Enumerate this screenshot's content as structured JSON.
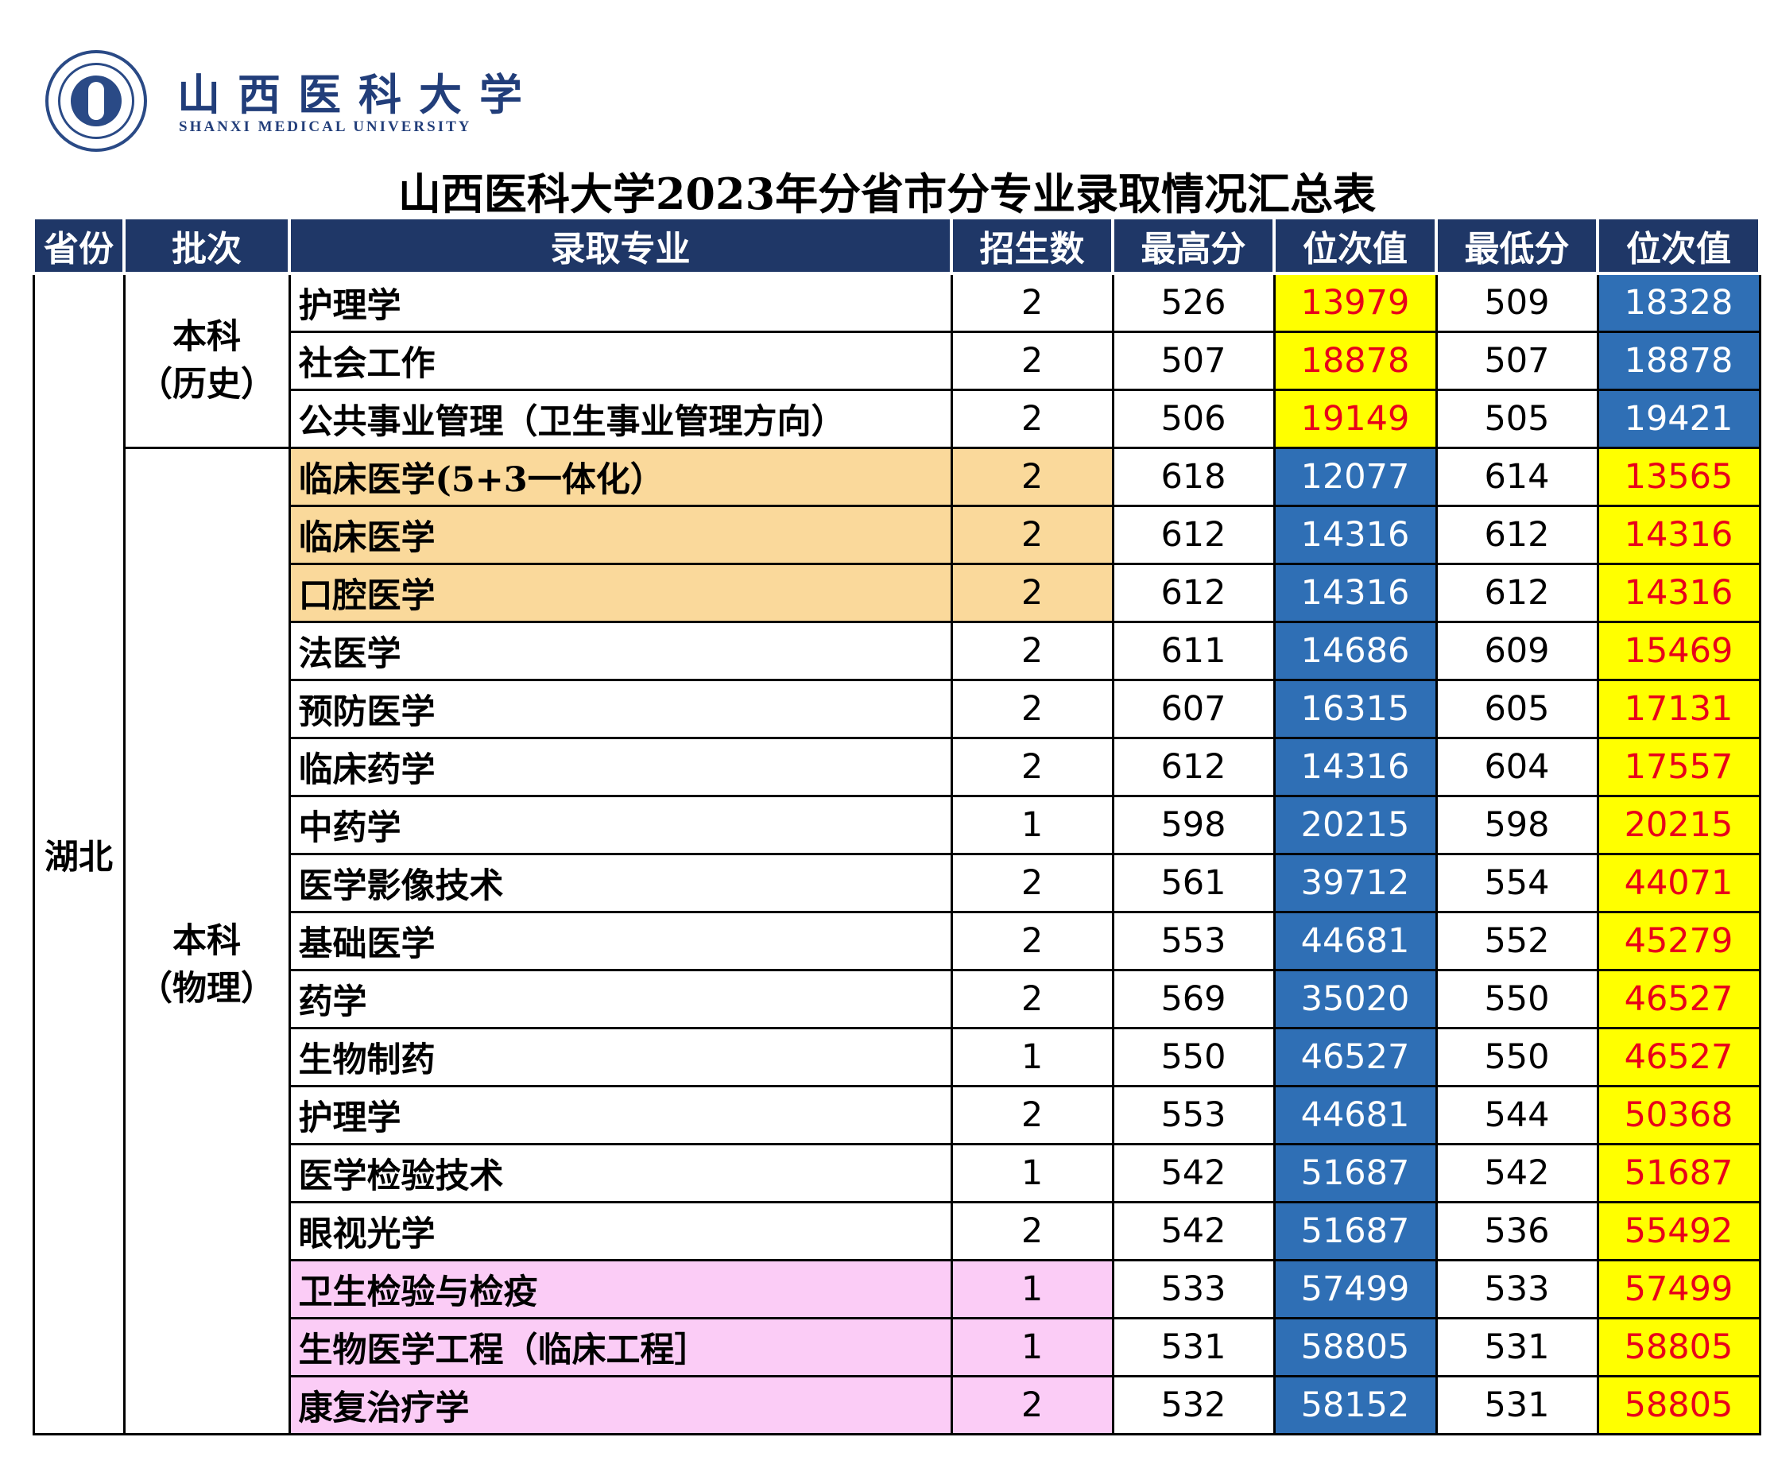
{
  "header": {
    "university_cn": "山西医科大学",
    "university_en": "SHANXI MEDICAL UNIVERSITY"
  },
  "title": "山西医科大学2023年分省市分专业录取情况汇总表",
  "columns": [
    "省份",
    "批次",
    "录取专业",
    "招生数",
    "最高分",
    "位次值",
    "最低分",
    "位次值"
  ],
  "colors": {
    "header_bg": "#1f3767",
    "rank_yellow_bg": "#ffff00",
    "rank_yellow_text": "#e8001a",
    "rank_blue_bg": "#2f6fb5",
    "highlight_orange": "#fad99b",
    "highlight_pink": "#fbccf6"
  },
  "province": "湖北",
  "groups": [
    {
      "batch": "本科（历史）",
      "batch_line1": "本科",
      "batch_line2": "（历史）",
      "rows": [
        {
          "major": "护理学",
          "quota": "2",
          "max": "526",
          "max_rank": "13979",
          "min": "509",
          "min_rank": "18328",
          "highlight": "none"
        },
        {
          "major": "社会工作",
          "quota": "2",
          "max": "507",
          "max_rank": "18878",
          "min": "507",
          "min_rank": "18878",
          "highlight": "none"
        },
        {
          "major": "公共事业管理（卫生事业管理方向）",
          "quota": "2",
          "max": "506",
          "max_rank": "19149",
          "min": "505",
          "min_rank": "19421",
          "highlight": "none"
        }
      ]
    },
    {
      "batch": "本科（物理）",
      "batch_line1": "本科",
      "batch_line2": "（物理）",
      "rows": [
        {
          "major": "临床医学(5+3一体化）",
          "quota": "2",
          "max": "618",
          "max_rank": "12077",
          "min": "614",
          "min_rank": "13565",
          "highlight": "orange"
        },
        {
          "major": "临床医学",
          "quota": "2",
          "max": "612",
          "max_rank": "14316",
          "min": "612",
          "min_rank": "14316",
          "highlight": "orange"
        },
        {
          "major": "口腔医学",
          "quota": "2",
          "max": "612",
          "max_rank": "14316",
          "min": "612",
          "min_rank": "14316",
          "highlight": "orange"
        },
        {
          "major": "法医学",
          "quota": "2",
          "max": "611",
          "max_rank": "14686",
          "min": "609",
          "min_rank": "15469",
          "highlight": "none"
        },
        {
          "major": "预防医学",
          "quota": "2",
          "max": "607",
          "max_rank": "16315",
          "min": "605",
          "min_rank": "17131",
          "highlight": "none"
        },
        {
          "major": "临床药学",
          "quota": "2",
          "max": "612",
          "max_rank": "14316",
          "min": "604",
          "min_rank": "17557",
          "highlight": "none"
        },
        {
          "major": "中药学",
          "quota": "1",
          "max": "598",
          "max_rank": "20215",
          "min": "598",
          "min_rank": "20215",
          "highlight": "none"
        },
        {
          "major": "医学影像技术",
          "quota": "2",
          "max": "561",
          "max_rank": "39712",
          "min": "554",
          "min_rank": "44071",
          "highlight": "none"
        },
        {
          "major": "基础医学",
          "quota": "2",
          "max": "553",
          "max_rank": "44681",
          "min": "552",
          "min_rank": "45279",
          "highlight": "none"
        },
        {
          "major": "药学",
          "quota": "2",
          "max": "569",
          "max_rank": "35020",
          "min": "550",
          "min_rank": "46527",
          "highlight": "none"
        },
        {
          "major": "生物制药",
          "quota": "1",
          "max": "550",
          "max_rank": "46527",
          "min": "550",
          "min_rank": "46527",
          "highlight": "none"
        },
        {
          "major": "护理学",
          "quota": "2",
          "max": "553",
          "max_rank": "44681",
          "min": "544",
          "min_rank": "50368",
          "highlight": "none"
        },
        {
          "major": "医学检验技术",
          "quota": "1",
          "max": "542",
          "max_rank": "51687",
          "min": "542",
          "min_rank": "51687",
          "highlight": "none"
        },
        {
          "major": "眼视光学",
          "quota": "2",
          "max": "542",
          "max_rank": "51687",
          "min": "536",
          "min_rank": "55492",
          "highlight": "none"
        },
        {
          "major": "卫生检验与检疫",
          "quota": "1",
          "max": "533",
          "max_rank": "57499",
          "min": "533",
          "min_rank": "57499",
          "highlight": "pink"
        },
        {
          "major": "生物医学工程（临床工程］",
          "quota": "1",
          "max": "531",
          "max_rank": "58805",
          "min": "531",
          "min_rank": "58805",
          "highlight": "pink"
        },
        {
          "major": "康复治疗学",
          "quota": "2",
          "max": "532",
          "max_rank": "58152",
          "min": "531",
          "min_rank": "58805",
          "highlight": "pink"
        }
      ]
    }
  ]
}
